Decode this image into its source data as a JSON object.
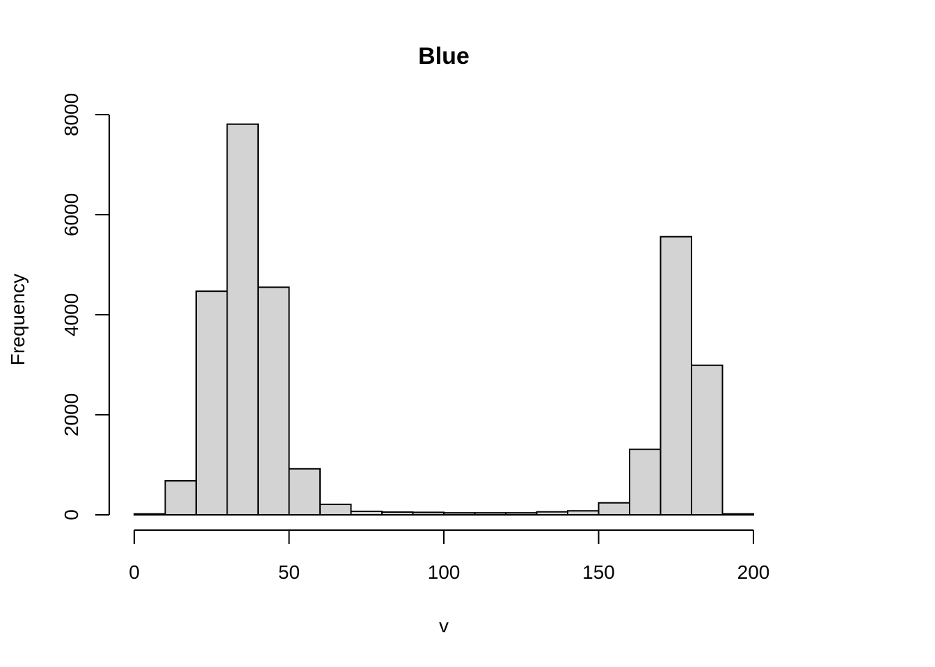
{
  "chart_data": {
    "type": "bar",
    "subtype": "histogram",
    "title": "Blue",
    "xlabel": "v",
    "ylabel": "Frequency",
    "bin_edges": [
      0,
      10,
      20,
      30,
      40,
      50,
      60,
      70,
      80,
      90,
      100,
      110,
      120,
      130,
      140,
      150,
      160,
      170,
      180,
      190,
      200
    ],
    "values": [
      20,
      680,
      4470,
      7810,
      4550,
      920,
      210,
      70,
      55,
      50,
      40,
      40,
      40,
      60,
      80,
      240,
      1310,
      5560,
      2990,
      20
    ],
    "xlim": [
      0,
      200
    ],
    "ylim": [
      0,
      8000
    ],
    "x_ticks": [
      0,
      50,
      100,
      150,
      200
    ],
    "y_ticks": [
      0,
      2000,
      4000,
      6000,
      8000
    ],
    "x_tick_labels": [
      "0",
      "50",
      "100",
      "150",
      "200"
    ],
    "y_tick_labels": [
      "0",
      "2000",
      "4000",
      "6000",
      "8000"
    ],
    "bar_color": "#d3d3d3",
    "edge_color": "#000000",
    "grid": false,
    "legend": "none"
  }
}
